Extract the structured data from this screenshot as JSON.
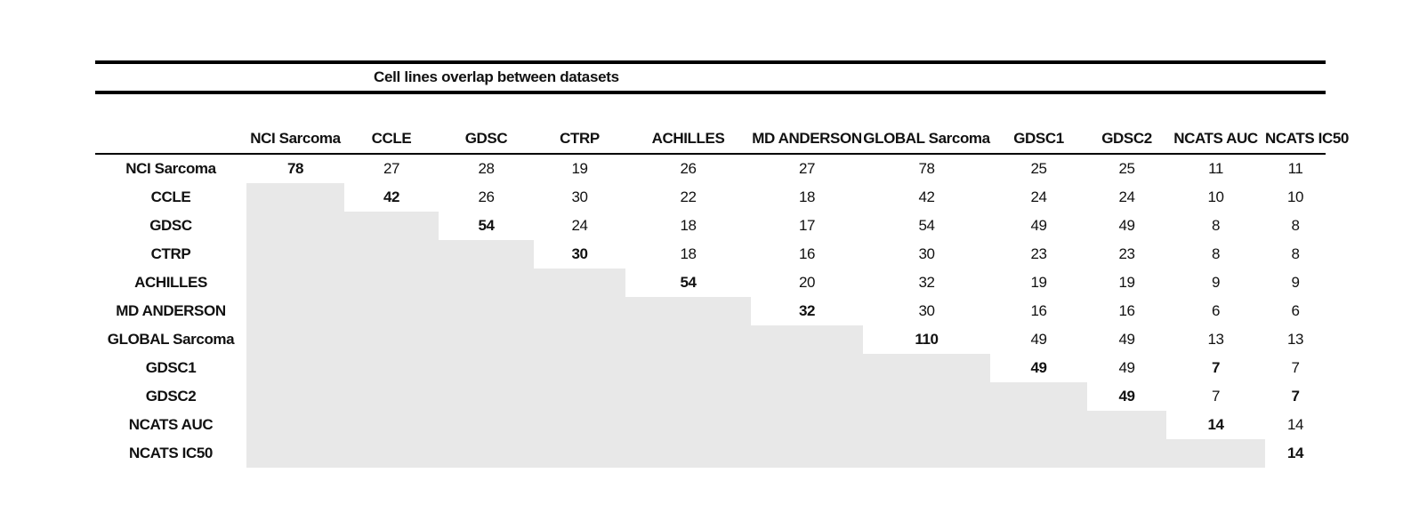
{
  "title": "Cell lines overlap between datasets",
  "table": {
    "column_headers": [
      "NCI Sarcoma",
      "CCLE",
      "GDSC",
      "CTRP",
      "ACHILLES",
      "MD ANDERSON",
      "GLOBAL Sarcoma",
      "GDSC1",
      "GDSC2",
      "NCATS AUC",
      "NCATS IC50"
    ],
    "rows": [
      {
        "label": "NCI Sarcoma",
        "values": [
          78,
          27,
          28,
          19,
          26,
          27,
          78,
          25,
          25,
          11,
          11
        ]
      },
      {
        "label": "CCLE",
        "values": [
          null,
          42,
          26,
          30,
          22,
          18,
          42,
          24,
          24,
          10,
          10
        ]
      },
      {
        "label": "GDSC",
        "values": [
          null,
          null,
          54,
          24,
          18,
          17,
          54,
          49,
          49,
          8,
          8
        ]
      },
      {
        "label": "CTRP",
        "values": [
          null,
          null,
          null,
          30,
          18,
          16,
          30,
          23,
          23,
          8,
          8
        ]
      },
      {
        "label": "ACHILLES",
        "values": [
          null,
          null,
          null,
          null,
          54,
          20,
          32,
          19,
          19,
          9,
          9
        ]
      },
      {
        "label": "MD ANDERSON",
        "values": [
          null,
          null,
          null,
          null,
          null,
          32,
          30,
          16,
          16,
          6,
          6
        ]
      },
      {
        "label": "GLOBAL Sarcoma",
        "values": [
          null,
          null,
          null,
          null,
          null,
          null,
          110,
          49,
          49,
          13,
          13
        ]
      },
      {
        "label": "GDSC1",
        "values": [
          null,
          null,
          null,
          null,
          null,
          null,
          null,
          49,
          49,
          7,
          7
        ]
      },
      {
        "label": "GDSC2",
        "values": [
          null,
          null,
          null,
          null,
          null,
          null,
          null,
          null,
          49,
          7,
          7
        ]
      },
      {
        "label": "NCATS AUC",
        "values": [
          null,
          null,
          null,
          null,
          null,
          null,
          null,
          null,
          null,
          14,
          14
        ]
      },
      {
        "label": "NCATS IC50",
        "values": [
          null,
          null,
          null,
          null,
          null,
          null,
          null,
          null,
          null,
          null,
          14
        ]
      }
    ],
    "bold_cells": [
      [
        0,
        0
      ],
      [
        1,
        1
      ],
      [
        2,
        2
      ],
      [
        3,
        3
      ],
      [
        4,
        4
      ],
      [
        5,
        5
      ],
      [
        6,
        6
      ],
      [
        7,
        7
      ],
      [
        8,
        8
      ],
      [
        9,
        9
      ],
      [
        10,
        10
      ],
      [
        7,
        9
      ],
      [
        8,
        10
      ]
    ]
  },
  "colors": {
    "shaded_cell": "#e8e8e8",
    "rule": "#000000",
    "text": "#111111"
  }
}
